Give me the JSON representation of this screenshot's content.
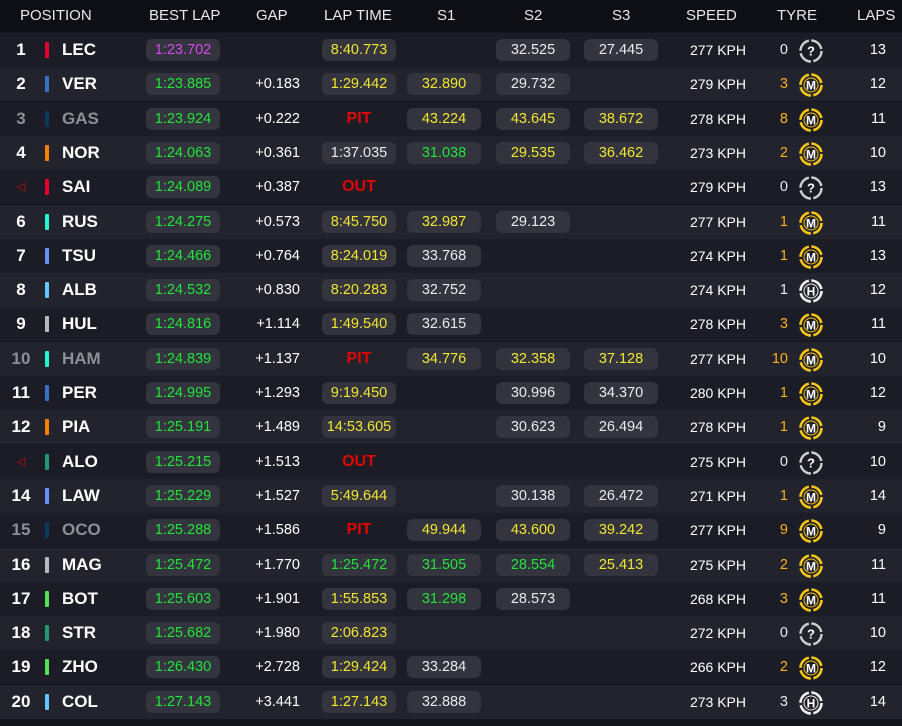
{
  "headers": {
    "position": "POSITION",
    "best_lap": "BEST LAP",
    "gap": "GAP",
    "lap_time": "LAP TIME",
    "s1": "S1",
    "s2": "S2",
    "s3": "S3",
    "speed": "SPEED",
    "tyre": "TYRE",
    "laps": "LAPS"
  },
  "colors": {
    "purple": "#d946ef",
    "green": "#22e33a",
    "yellow": "#f2e530",
    "white": "#e9e9ee",
    "status_red": "#e10600",
    "tyre_count_highlight": "#f5b21c",
    "tyre_medium": "#f5c518",
    "tyre_hard": "#f0f0f0",
    "tyre_unknown": "#d0d0d0"
  },
  "rows": [
    {
      "pos": "1",
      "driver": "LEC",
      "team_color": "#e8002d",
      "best": "1:23.702",
      "best_c": "purple",
      "gap": "",
      "lap": "8:40.773",
      "lap_c": "yellow",
      "s1": "",
      "s1_c": "white",
      "s2": "32.525",
      "s2_c": "white",
      "s3": "27.445",
      "s3_c": "white",
      "speed": "277 KPH",
      "tyre_count": "0",
      "tyre_count_c": "white",
      "tyre": "unknown",
      "tyre_icon": "unknown-tyre-icon",
      "laps": "13"
    },
    {
      "pos": "2",
      "driver": "VER",
      "team_color": "#3671c6",
      "best": "1:23.885",
      "best_c": "green",
      "gap": "+0.183",
      "lap": "1:29.442",
      "lap_c": "yellow",
      "s1": "32.890",
      "s1_c": "yellow",
      "s2": "29.732",
      "s2_c": "white",
      "s3": "",
      "s3_c": "white",
      "speed": "279 KPH",
      "tyre_count": "3",
      "tyre_count_c": "orange",
      "tyre": "M",
      "tyre_icon": "medium-tyre-icon",
      "laps": "12"
    },
    {
      "pos": "3",
      "driver": "GAS",
      "team_color": "#0a3a5c",
      "dim": true,
      "best": "1:23.924",
      "best_c": "green",
      "gap": "+0.222",
      "status": "PIT",
      "s1": "43.224",
      "s1_c": "yellow",
      "s2": "43.645",
      "s2_c": "yellow",
      "s3": "38.672",
      "s3_c": "yellow",
      "speed": "278 KPH",
      "tyre_count": "8",
      "tyre_count_c": "orange",
      "tyre": "M",
      "tyre_icon": "medium-tyre-icon",
      "laps": "11"
    },
    {
      "pos": "4",
      "driver": "NOR",
      "team_color": "#ff8000",
      "best": "1:24.063",
      "best_c": "green",
      "gap": "+0.361",
      "lap": "1:37.035",
      "lap_c": "white",
      "s1": "31.038",
      "s1_c": "green",
      "s2": "29.535",
      "s2_c": "yellow",
      "s3": "36.462",
      "s3_c": "yellow",
      "speed": "273 KPH",
      "tyre_count": "2",
      "tyre_count_c": "orange",
      "tyre": "M",
      "tyre_icon": "medium-tyre-icon",
      "laps": "10"
    },
    {
      "pos": "",
      "pos_tri": true,
      "driver": "SAI",
      "team_color": "#e8002d",
      "best": "1:24.089",
      "best_c": "green",
      "gap": "+0.387",
      "status": "OUT",
      "s1": "",
      "s1_c": "white",
      "s2": "",
      "s2_c": "white",
      "s3": "",
      "s3_c": "white",
      "speed": "279 KPH",
      "tyre_count": "0",
      "tyre_count_c": "white",
      "tyre": "unknown",
      "tyre_icon": "unknown-tyre-icon",
      "laps": "13"
    },
    {
      "pos": "6",
      "driver": "RUS",
      "team_color": "#27f4d2",
      "best": "1:24.275",
      "best_c": "green",
      "gap": "+0.573",
      "lap": "8:45.750",
      "lap_c": "yellow",
      "s1": "32.987",
      "s1_c": "yellow",
      "s2": "29.123",
      "s2_c": "white",
      "s3": "",
      "s3_c": "white",
      "speed": "277 KPH",
      "tyre_count": "1",
      "tyre_count_c": "orange",
      "tyre": "M",
      "tyre_icon": "medium-tyre-icon",
      "laps": "11"
    },
    {
      "pos": "7",
      "driver": "TSU",
      "team_color": "#6692ff",
      "best": "1:24.466",
      "best_c": "green",
      "gap": "+0.764",
      "lap": "8:24.019",
      "lap_c": "yellow",
      "s1": "33.768",
      "s1_c": "white",
      "s2": "",
      "s2_c": "white",
      "s3": "",
      "s3_c": "white",
      "speed": "274 KPH",
      "tyre_count": "1",
      "tyre_count_c": "orange",
      "tyre": "M",
      "tyre_icon": "medium-tyre-icon",
      "laps": "13"
    },
    {
      "pos": "8",
      "driver": "ALB",
      "team_color": "#64c4ff",
      "best": "1:24.532",
      "best_c": "green",
      "gap": "+0.830",
      "lap": "8:20.283",
      "lap_c": "yellow",
      "s1": "32.752",
      "s1_c": "white",
      "s2": "",
      "s2_c": "white",
      "s3": "",
      "s3_c": "white",
      "speed": "274 KPH",
      "tyre_count": "1",
      "tyre_count_c": "white",
      "tyre": "H",
      "tyre_icon": "hard-tyre-icon",
      "laps": "12"
    },
    {
      "pos": "9",
      "driver": "HUL",
      "team_color": "#b6babd",
      "best": "1:24.816",
      "best_c": "green",
      "gap": "+1.114",
      "lap": "1:49.540",
      "lap_c": "yellow",
      "s1": "32.615",
      "s1_c": "white",
      "s2": "",
      "s2_c": "white",
      "s3": "",
      "s3_c": "white",
      "speed": "278 KPH",
      "tyre_count": "3",
      "tyre_count_c": "orange",
      "tyre": "M",
      "tyre_icon": "medium-tyre-icon",
      "laps": "11"
    },
    {
      "pos": "10",
      "driver": "HAM",
      "team_color": "#27f4d2",
      "dim": true,
      "best": "1:24.839",
      "best_c": "green",
      "gap": "+1.137",
      "status": "PIT",
      "s1": "34.776",
      "s1_c": "yellow",
      "s2": "32.358",
      "s2_c": "yellow",
      "s3": "37.128",
      "s3_c": "yellow",
      "speed": "277 KPH",
      "tyre_count": "10",
      "tyre_count_c": "orange",
      "tyre": "M",
      "tyre_icon": "medium-tyre-icon",
      "laps": "10"
    },
    {
      "pos": "11",
      "driver": "PER",
      "team_color": "#3671c6",
      "best": "1:24.995",
      "best_c": "green",
      "gap": "+1.293",
      "lap": "9:19.450",
      "lap_c": "yellow",
      "s1": "",
      "s1_c": "white",
      "s2": "30.996",
      "s2_c": "white",
      "s3": "34.370",
      "s3_c": "white",
      "speed": "280 KPH",
      "tyre_count": "1",
      "tyre_count_c": "orange",
      "tyre": "M",
      "tyre_icon": "medium-tyre-icon",
      "laps": "12"
    },
    {
      "pos": "12",
      "driver": "PIA",
      "team_color": "#ff8000",
      "best": "1:25.191",
      "best_c": "green",
      "gap": "+1.489",
      "lap": "14:53.605",
      "lap_c": "yellow",
      "s1": "",
      "s1_c": "white",
      "s2": "30.623",
      "s2_c": "white",
      "s3": "26.494",
      "s3_c": "white",
      "speed": "278 KPH",
      "tyre_count": "1",
      "tyre_count_c": "orange",
      "tyre": "M",
      "tyre_icon": "medium-tyre-icon",
      "laps": "9"
    },
    {
      "pos": "",
      "pos_tri": true,
      "driver": "ALO",
      "team_color": "#229971",
      "best": "1:25.215",
      "best_c": "green",
      "gap": "+1.513",
      "status": "OUT",
      "s1": "",
      "s1_c": "white",
      "s2": "",
      "s2_c": "white",
      "s3": "",
      "s3_c": "white",
      "speed": "275 KPH",
      "tyre_count": "0",
      "tyre_count_c": "white",
      "tyre": "unknown",
      "tyre_icon": "unknown-tyre-icon",
      "laps": "10"
    },
    {
      "pos": "14",
      "driver": "LAW",
      "team_color": "#6692ff",
      "best": "1:25.229",
      "best_c": "green",
      "gap": "+1.527",
      "lap": "5:49.644",
      "lap_c": "yellow",
      "s1": "",
      "s1_c": "white",
      "s2": "30.138",
      "s2_c": "white",
      "s3": "26.472",
      "s3_c": "white",
      "speed": "271 KPH",
      "tyre_count": "1",
      "tyre_count_c": "orange",
      "tyre": "M",
      "tyre_icon": "medium-tyre-icon",
      "laps": "14"
    },
    {
      "pos": "15",
      "driver": "OCO",
      "team_color": "#0a3a5c",
      "dim": true,
      "best": "1:25.288",
      "best_c": "green",
      "gap": "+1.586",
      "status": "PIT",
      "s1": "49.944",
      "s1_c": "yellow",
      "s2": "43.600",
      "s2_c": "yellow",
      "s3": "39.242",
      "s3_c": "yellow",
      "speed": "277 KPH",
      "tyre_count": "9",
      "tyre_count_c": "orange",
      "tyre": "M",
      "tyre_icon": "medium-tyre-icon",
      "laps": "9"
    },
    {
      "pos": "16",
      "driver": "MAG",
      "team_color": "#b6babd",
      "best": "1:25.472",
      "best_c": "green",
      "gap": "+1.770",
      "lap": "1:25.472",
      "lap_c": "green",
      "s1": "31.505",
      "s1_c": "green",
      "s2": "28.554",
      "s2_c": "green",
      "s3": "25.413",
      "s3_c": "yellow",
      "speed": "275 KPH",
      "tyre_count": "2",
      "tyre_count_c": "orange",
      "tyre": "M",
      "tyre_icon": "medium-tyre-icon",
      "laps": "11"
    },
    {
      "pos": "17",
      "driver": "BOT",
      "team_color": "#52e252",
      "best": "1:25.603",
      "best_c": "green",
      "gap": "+1.901",
      "lap": "1:55.853",
      "lap_c": "yellow",
      "s1": "31.298",
      "s1_c": "green",
      "s2": "28.573",
      "s2_c": "white",
      "s3": "",
      "s3_c": "white",
      "speed": "268 KPH",
      "tyre_count": "3",
      "tyre_count_c": "orange",
      "tyre": "M",
      "tyre_icon": "medium-tyre-icon",
      "laps": "11"
    },
    {
      "pos": "18",
      "driver": "STR",
      "team_color": "#229971",
      "best": "1:25.682",
      "best_c": "green",
      "gap": "+1.980",
      "lap": "2:06.823",
      "lap_c": "yellow",
      "s1": "",
      "s1_c": "white",
      "s2": "",
      "s2_c": "white",
      "s3": "",
      "s3_c": "white",
      "speed": "272 KPH",
      "tyre_count": "0",
      "tyre_count_c": "white",
      "tyre": "unknown",
      "tyre_icon": "unknown-tyre-icon",
      "laps": "10"
    },
    {
      "pos": "19",
      "driver": "ZHO",
      "team_color": "#52e252",
      "best": "1:26.430",
      "best_c": "green",
      "gap": "+2.728",
      "lap": "1:29.424",
      "lap_c": "yellow",
      "s1": "33.284",
      "s1_c": "white",
      "s2": "",
      "s2_c": "white",
      "s3": "",
      "s3_c": "white",
      "speed": "266 KPH",
      "tyre_count": "2",
      "tyre_count_c": "orange",
      "tyre": "M",
      "tyre_icon": "medium-tyre-icon",
      "laps": "12"
    },
    {
      "pos": "20",
      "driver": "COL",
      "team_color": "#64c4ff",
      "best": "1:27.143",
      "best_c": "green",
      "gap": "+3.441",
      "lap": "1:27.143",
      "lap_c": "yellow",
      "s1": "32.888",
      "s1_c": "white",
      "s2": "",
      "s2_c": "white",
      "s3": "",
      "s3_c": "white",
      "speed": "273 KPH",
      "tyre_count": "3",
      "tyre_count_c": "white",
      "tyre": "H",
      "tyre_icon": "hard-tyre-icon",
      "laps": "14"
    }
  ]
}
